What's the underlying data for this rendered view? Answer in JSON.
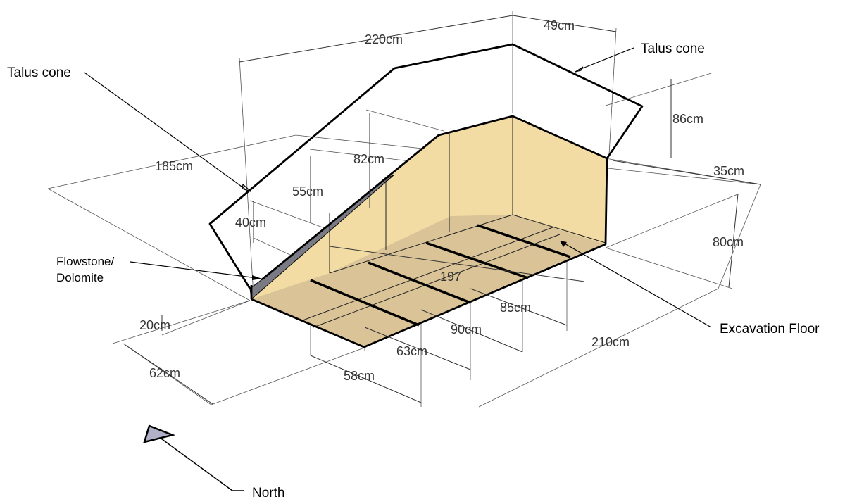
{
  "labels": {
    "talus_cone_left": "Talus cone",
    "talus_cone_right": "Talus cone",
    "flowstone_line1": "Flowstone/",
    "flowstone_line2": "Dolomite",
    "excavation_floor": "Excavation Floor",
    "north": "North"
  },
  "dimensions": {
    "d220": "220cm",
    "d49": "49cm",
    "d86": "86cm",
    "d35": "35cm",
    "d185": "185cm",
    "d82": "82cm",
    "d55": "55cm",
    "d40": "40cm",
    "d80": "80cm",
    "d197": "197",
    "d85": "85cm",
    "d90": "90cm",
    "d20": "20cm",
    "d63": "63cm",
    "d62": "62cm",
    "d58": "58cm",
    "d210": "210cm"
  },
  "colors": {
    "wall_fill": "#f3dca4",
    "floor_fill": "#d6c096",
    "flowstone_fill": "#7a7a84",
    "north_arrow_fill": "#b0b0c8"
  }
}
